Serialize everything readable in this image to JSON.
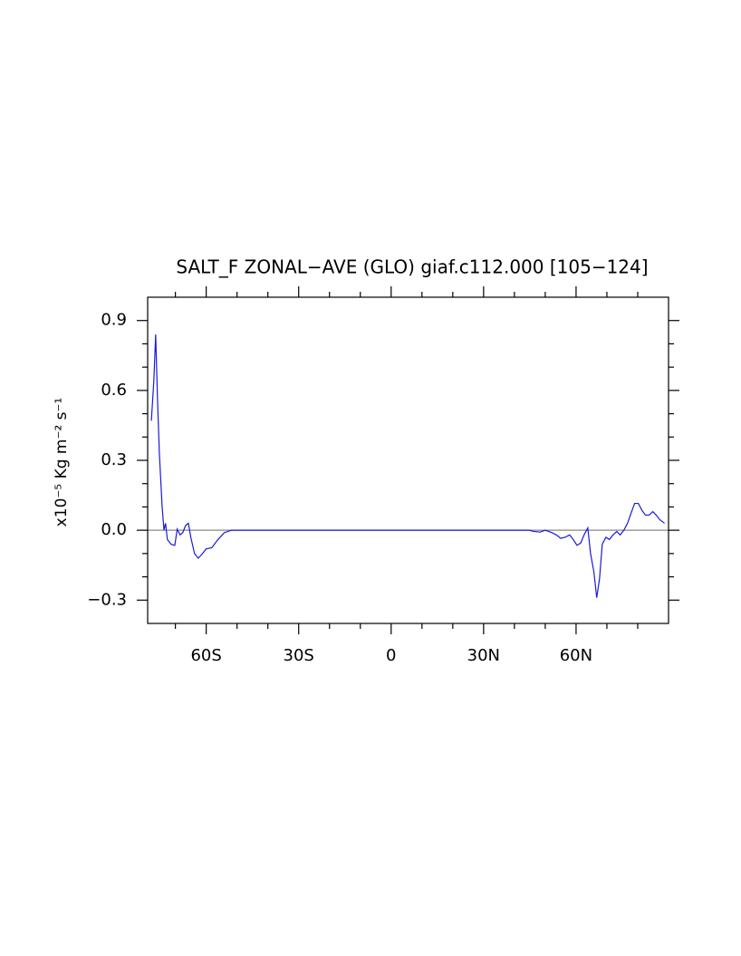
{
  "chart_data": {
    "type": "line",
    "title": "SALT_F ZONAL−AVE (GLO) giaf.c112.000 [105−124]",
    "ylabel": "x10⁻⁵ Kg m⁻² s⁻¹",
    "xlim": [
      -79,
      90
    ],
    "ylim": [
      -0.4,
      1.0
    ],
    "xticks": [
      {
        "value": -60,
        "label": "60S"
      },
      {
        "value": -30,
        "label": "30S"
      },
      0,
      {
        "value": 30,
        "label": "30N"
      },
      {
        "value": 60,
        "label": "60N"
      }
    ],
    "xminorticks": [
      -70,
      -50,
      -40,
      -20,
      -10,
      10,
      20,
      40,
      50,
      70,
      80
    ],
    "yticks": [
      {
        "value": -0.3,
        "label": "−0.3"
      },
      {
        "value": 0,
        "label": "0.0"
      },
      0.3,
      0.6,
      0.9
    ],
    "yminorticks": [
      -0.2,
      -0.1,
      0.1,
      0.2,
      0.4,
      0.5,
      0.7,
      0.8
    ],
    "zero_line": true,
    "zero_line_color": "#888888",
    "series": [
      {
        "color": "#1a1adb",
        "x": [
          -77.8,
          -77.0,
          -76.4,
          -75.8,
          -75.2,
          -74.3,
          -73.7,
          -73.2,
          -72.6,
          -71.4,
          -70.2,
          -69.4,
          -68.5,
          -67.6,
          -66.7,
          -65.8,
          -65.0,
          -63.8,
          -62.6,
          -61.5,
          -60.0,
          -58.2,
          -56.2,
          -54.1,
          -51.8,
          0,
          44.8,
          46.2,
          48.3,
          50.0,
          52.1,
          53.6,
          55.0,
          56.5,
          57.9,
          59.1,
          60.3,
          61.5,
          62.6,
          63.8,
          64.7,
          65.8,
          66.7,
          67.6,
          68.5,
          69.7,
          70.8,
          72.0,
          73.2,
          74.3,
          75.5,
          76.7,
          77.9,
          79.0,
          80.2,
          81.4,
          82.5,
          83.7,
          84.9,
          86.0,
          87.2,
          88.7
        ],
        "values": [
          0.47,
          0.64,
          0.84,
          0.56,
          0.33,
          0.1,
          0.0,
          0.03,
          -0.04,
          -0.06,
          -0.065,
          0.005,
          -0.02,
          -0.01,
          0.02,
          0.03,
          -0.03,
          -0.1,
          -0.12,
          -0.105,
          -0.08,
          -0.075,
          -0.04,
          -0.01,
          0.0,
          0.0,
          0.0,
          -0.005,
          -0.008,
          0.0,
          -0.01,
          -0.02,
          -0.035,
          -0.03,
          -0.02,
          -0.04,
          -0.065,
          -0.055,
          -0.02,
          0.01,
          -0.1,
          -0.18,
          -0.29,
          -0.21,
          -0.06,
          -0.03,
          -0.04,
          -0.02,
          -0.005,
          -0.02,
          0.0,
          0.03,
          0.075,
          0.115,
          0.115,
          0.085,
          0.065,
          0.065,
          0.08,
          0.065,
          0.045,
          0.03
        ]
      }
    ]
  }
}
